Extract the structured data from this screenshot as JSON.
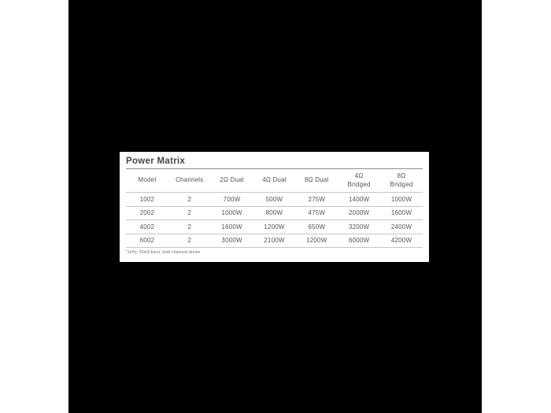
{
  "chart_data": {
    "type": "table",
    "title": "Power Matrix",
    "columns": [
      {
        "line1": "Model",
        "line2": ""
      },
      {
        "line1": "Channels",
        "line2": ""
      },
      {
        "line1": "2Ω Dual",
        "line2": ""
      },
      {
        "line1": "4Ω Dual",
        "line2": ""
      },
      {
        "line1": "8Ω Dual",
        "line2": ""
      },
      {
        "line1": "4Ω",
        "line2": "Bridged"
      },
      {
        "line1": "8Ω",
        "line2": "Bridged"
      }
    ],
    "rows": [
      [
        "1002",
        "2",
        "700W",
        "500W",
        "275W",
        "1400W",
        "1000W"
      ],
      [
        "2002",
        "2",
        "1000W",
        "800W",
        "475W",
        "2000W",
        "1600W"
      ],
      [
        "4002",
        "2",
        "1600W",
        "1200W",
        "650W",
        "3200W",
        "2400W"
      ],
      [
        "6002",
        "2",
        "3000W",
        "2100W",
        "1200W",
        "6000W",
        "4200W"
      ]
    ],
    "footnote": "*1kHz, 20mS burst, both channels driven"
  },
  "colors": {
    "page_background": "#ffffff",
    "brochure_background": "#000000",
    "panel_background": "#ffffff",
    "title_text": "#45454d",
    "table_text": "#55555c",
    "title_rule": "#8c8c8c",
    "row_rule": "#c6c6c6",
    "footnote_text": "#6f6f77"
  }
}
